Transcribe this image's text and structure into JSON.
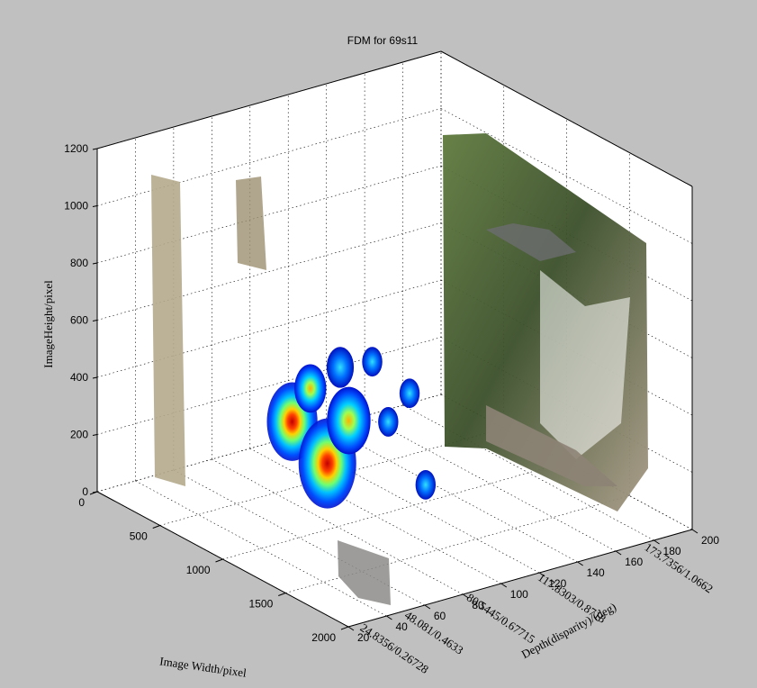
{
  "chart_data": {
    "type": "scatter",
    "title": "FDM for 69s11",
    "xlabel": "Image Width/pixel",
    "ylabel": "ImageHeight/pixel",
    "zlabel": "Depth(disparity)/(deg)",
    "x_ticks": [
      "0",
      "500",
      "1000",
      "1500",
      "2000"
    ],
    "y_ticks": [
      "0",
      "200",
      "400",
      "600",
      "800",
      "1000",
      "1200"
    ],
    "depth_ticks": [
      "20",
      "40",
      "60",
      "80",
      "100",
      "120",
      "140",
      "160",
      "180",
      "200"
    ],
    "depth_annotations": [
      "24.8356/0.26728",
      "48.081/0.4633",
      "80.5445/0.67715",
      "117.8303/0.8718",
      "173.7356/1.0662"
    ],
    "xlim": [
      0,
      2000
    ],
    "ylim": [
      0,
      1200
    ],
    "zlim": [
      20,
      200
    ],
    "grid": true,
    "colormap": "jet",
    "fixation_clusters": [
      {
        "x": 250,
        "y": 200,
        "intensity": 0.85
      },
      {
        "x": 580,
        "y": 120,
        "intensity": 1.0
      },
      {
        "x": 420,
        "y": 350,
        "intensity": 0.45
      },
      {
        "x": 780,
        "y": 310,
        "intensity": 0.7
      },
      {
        "x": 700,
        "y": 480,
        "intensity": 0.35
      },
      {
        "x": 1000,
        "y": 560,
        "intensity": 0.2
      },
      {
        "x": 1150,
        "y": 380,
        "intensity": 0.2
      },
      {
        "x": 1350,
        "y": 520,
        "intensity": 0.2
      },
      {
        "x": 1500,
        "y": 230,
        "intensity": 0.2
      }
    ]
  }
}
